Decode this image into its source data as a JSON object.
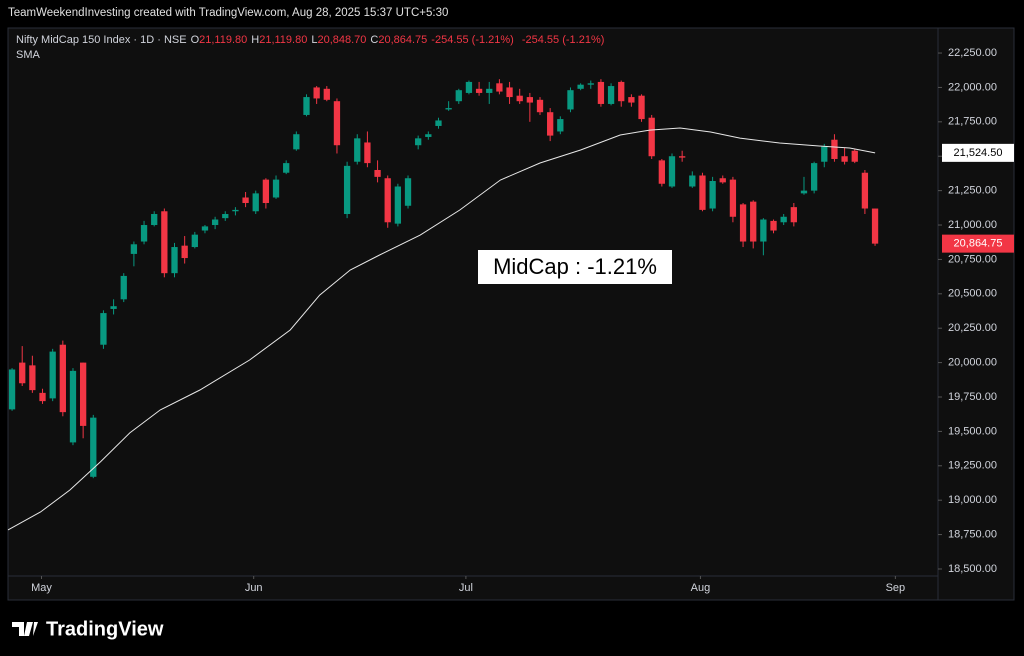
{
  "header": {
    "credit": "TeamWeekendInvesting created with TradingView.com, Aug 28, 2025 15:37 UTC+5:30",
    "logo": "TradingView"
  },
  "chart_data": {
    "type": "candlestick",
    "symbol": "Nifty MidCap 150 Index · 1D · NSE",
    "ohlc_legend": {
      "o_key": "O",
      "o": "21,119.80",
      "h_key": "H",
      "h": "21,119.80",
      "l_key": "L",
      "l": "20,848.70",
      "c_key": "C",
      "c": "20,864.75",
      "change": "-254.55 (-1.21%)",
      "change2": "-254.55 (-1.21%)"
    },
    "annotation": "MidCap : -1.21%",
    "up_color": "#089981",
    "down_color": "#f23645",
    "xlim": [
      -0.4,
      91.2
    ],
    "xticks": [
      {
        "value": 2.9,
        "label": "May"
      },
      {
        "value": 23.8,
        "label": "Jun"
      },
      {
        "value": 44.7,
        "label": "Jul"
      },
      {
        "value": 67.8,
        "label": "Aug"
      },
      {
        "value": 87.0,
        "label": "Sep"
      }
    ],
    "ylim": [
      18449,
      22432
    ],
    "yticks": [
      {
        "value": 18500,
        "label": "18,500.00"
      },
      {
        "value": 18750,
        "label": "18,750.00"
      },
      {
        "value": 19000,
        "label": "19,000.00"
      },
      {
        "value": 19250,
        "label": "19,250.00"
      },
      {
        "value": 19500,
        "label": "19,500.00"
      },
      {
        "value": 19750,
        "label": "19,750.00"
      },
      {
        "value": 20000,
        "label": "20,000.00"
      },
      {
        "value": 20250,
        "label": "20,250.00"
      },
      {
        "value": 20500,
        "label": "20,500.00"
      },
      {
        "value": 20750,
        "label": "20,750.00"
      },
      {
        "value": 21000,
        "label": "21,000.00"
      },
      {
        "value": 21250,
        "label": "21,250.00"
      },
      {
        "value": 21500,
        "label": "21,500.00"
      },
      {
        "value": 21750,
        "label": "21,750.00"
      },
      {
        "value": 22000,
        "label": "22,000.00"
      },
      {
        "value": 22250,
        "label": "22,250.00"
      }
    ],
    "open": [
      19660,
      20000,
      19980,
      19780,
      19740,
      20130,
      19420,
      20000,
      19170,
      20130,
      20390,
      20460,
      20790,
      20880,
      21000,
      21100,
      20650,
      20850,
      20840,
      20960,
      21000,
      21050,
      21100,
      21200,
      21100,
      21330,
      21200,
      21380,
      21550,
      21800,
      22000,
      21990,
      21900,
      21080,
      21460,
      21600,
      21400,
      21340,
      21010,
      21140,
      21580,
      21640,
      21720,
      21840,
      21900,
      21960,
      21990,
      21960,
      22030,
      22000,
      21940,
      21930,
      21910,
      21820,
      21680,
      21840,
      21990,
      22020,
      22040,
      21880,
      22040,
      21930,
      21940,
      21780,
      21470,
      21280,
      21500,
      21280,
      21360,
      21120,
      21340,
      21330,
      21150,
      21170,
      20880,
      21030,
      21020,
      21130,
      21230,
      21250,
      21460,
      21620,
      21500,
      21540,
      21380,
      21119.8
    ],
    "high": [
      19960,
      20120,
      20050,
      19810,
      20100,
      20160,
      19960,
      20000,
      19620,
      20380,
      20460,
      20650,
      20880,
      21030,
      21100,
      21120,
      20870,
      20920,
      20950,
      21000,
      21060,
      21100,
      21130,
      21240,
      21250,
      21340,
      21360,
      21470,
      21680,
      21950,
      22010,
      22010,
      21920,
      21460,
      21660,
      21680,
      21470,
      21360,
      21300,
      21360,
      21650,
      21680,
      21780,
      21900,
      21990,
      22050,
      22040,
      22040,
      22060,
      22040,
      21990,
      21960,
      21930,
      21850,
      21790,
      22000,
      22030,
      22050,
      22060,
      22030,
      22050,
      21950,
      21950,
      21800,
      21480,
      21520,
      21540,
      21390,
      21380,
      21350,
      21360,
      21350,
      21160,
      21180,
      21050,
      21040,
      21080,
      21160,
      21350,
      21460,
      21590,
      21660,
      21560,
      21550,
      21400,
      21119.8
    ],
    "low": [
      19650,
      19830,
      19780,
      19700,
      19720,
      19610,
      19400,
      19450,
      19160,
      20100,
      20350,
      20440,
      20700,
      20860,
      20990,
      20620,
      20620,
      20720,
      20830,
      20940,
      20970,
      21030,
      21070,
      21130,
      21080,
      21120,
      21190,
      21370,
      21540,
      21790,
      21880,
      21900,
      21520,
      21050,
      21440,
      21420,
      21310,
      20980,
      20990,
      21120,
      21550,
      21620,
      21700,
      21830,
      21880,
      21950,
      21940,
      21880,
      21950,
      21880,
      21880,
      21750,
      21800,
      21610,
      21660,
      21820,
      21980,
      21990,
      21860,
      21870,
      21860,
      21860,
      21750,
      21480,
      21280,
      21270,
      21460,
      21270,
      21100,
      21100,
      21300,
      21020,
      20840,
      20830,
      20780,
      20940,
      21000,
      20990,
      21220,
      21230,
      21420,
      21460,
      21440,
      21450,
      21080,
      20848.7
    ],
    "close": [
      19950,
      19850,
      19800,
      19720,
      20080,
      19640,
      19940,
      19540,
      19600,
      20360,
      20410,
      20630,
      20860,
      21000,
      21080,
      20650,
      20840,
      20760,
      20930,
      20990,
      21040,
      21080,
      21110,
      21160,
      21230,
      21160,
      21330,
      21450,
      21660,
      21930,
      21920,
      21910,
      21580,
      21430,
      21630,
      21450,
      21350,
      21020,
      21280,
      21340,
      21630,
      21660,
      21760,
      21850,
      21980,
      22040,
      21960,
      21990,
      21970,
      21930,
      21900,
      21890,
      21820,
      21650,
      21770,
      21980,
      22020,
      22030,
      21880,
      22010,
      21900,
      21890,
      21770,
      21500,
      21300,
      21500,
      21490,
      21360,
      21110,
      21320,
      21310,
      21060,
      20880,
      20880,
      21040,
      20960,
      21060,
      21020,
      21250,
      21450,
      21570,
      21480,
      21460,
      21460,
      21120,
      20864.75
    ],
    "sma": {
      "name": "SMA",
      "color": "#e8e8e8",
      "x": [
        -0.4,
        2.8,
        5.7,
        8.7,
        11.6,
        14.6,
        18.5,
        23.4,
        27.4,
        30.3,
        33.3,
        36.2,
        40.2,
        44.1,
        48.1,
        52.0,
        56.0,
        59.9,
        62.8,
        65.8,
        68.8,
        71.7,
        75.6,
        79.5,
        82.5,
        85
      ],
      "values": [
        18784,
        18914,
        19074,
        19278,
        19489,
        19656,
        19801,
        20019,
        20237,
        20491,
        20673,
        20782,
        20927,
        21109,
        21327,
        21451,
        21545,
        21654,
        21690,
        21705,
        21676,
        21632,
        21596,
        21574,
        21560,
        21524.5
      ],
      "last_label": "21,524.50"
    },
    "close_label": "20,864.75",
    "grid": false
  }
}
